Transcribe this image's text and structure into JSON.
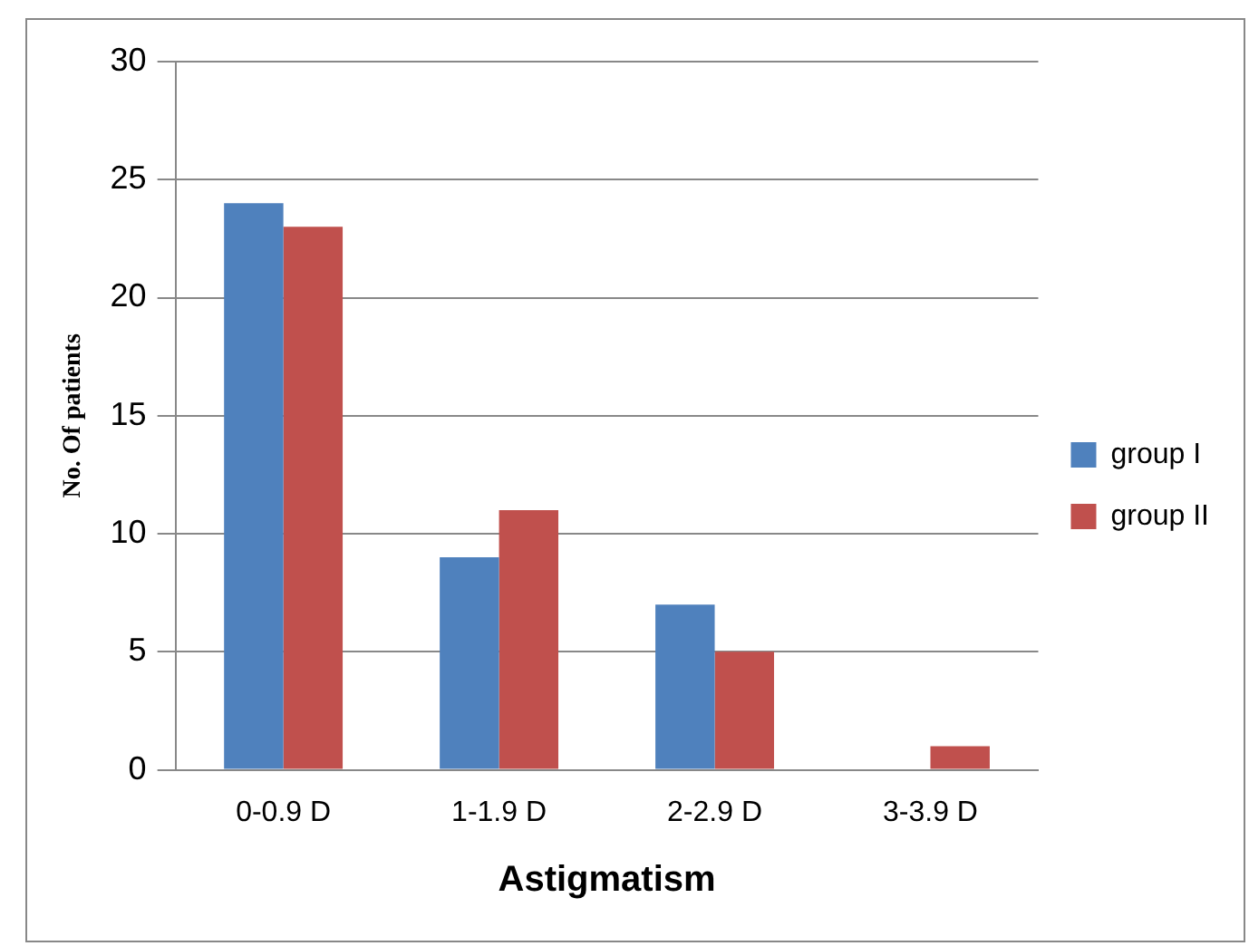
{
  "chart_data": {
    "type": "bar",
    "xlabel": "Astigmatism",
    "ylabel": "No. Of patients",
    "categories": [
      "0-0.9 D",
      "1-1.9 D",
      "2-2.9 D",
      "3-3.9 D"
    ],
    "series": [
      {
        "name": "group I",
        "color": "#4f81bd",
        "values": [
          24,
          9,
          7,
          0
        ]
      },
      {
        "name": "group II",
        "color": "#c0504d",
        "values": [
          23,
          11,
          5,
          1
        ]
      }
    ],
    "ylim": [
      0,
      30
    ],
    "yticks": [
      0,
      5,
      10,
      15,
      20,
      25,
      30
    ],
    "grid": "y",
    "legend": "right"
  }
}
